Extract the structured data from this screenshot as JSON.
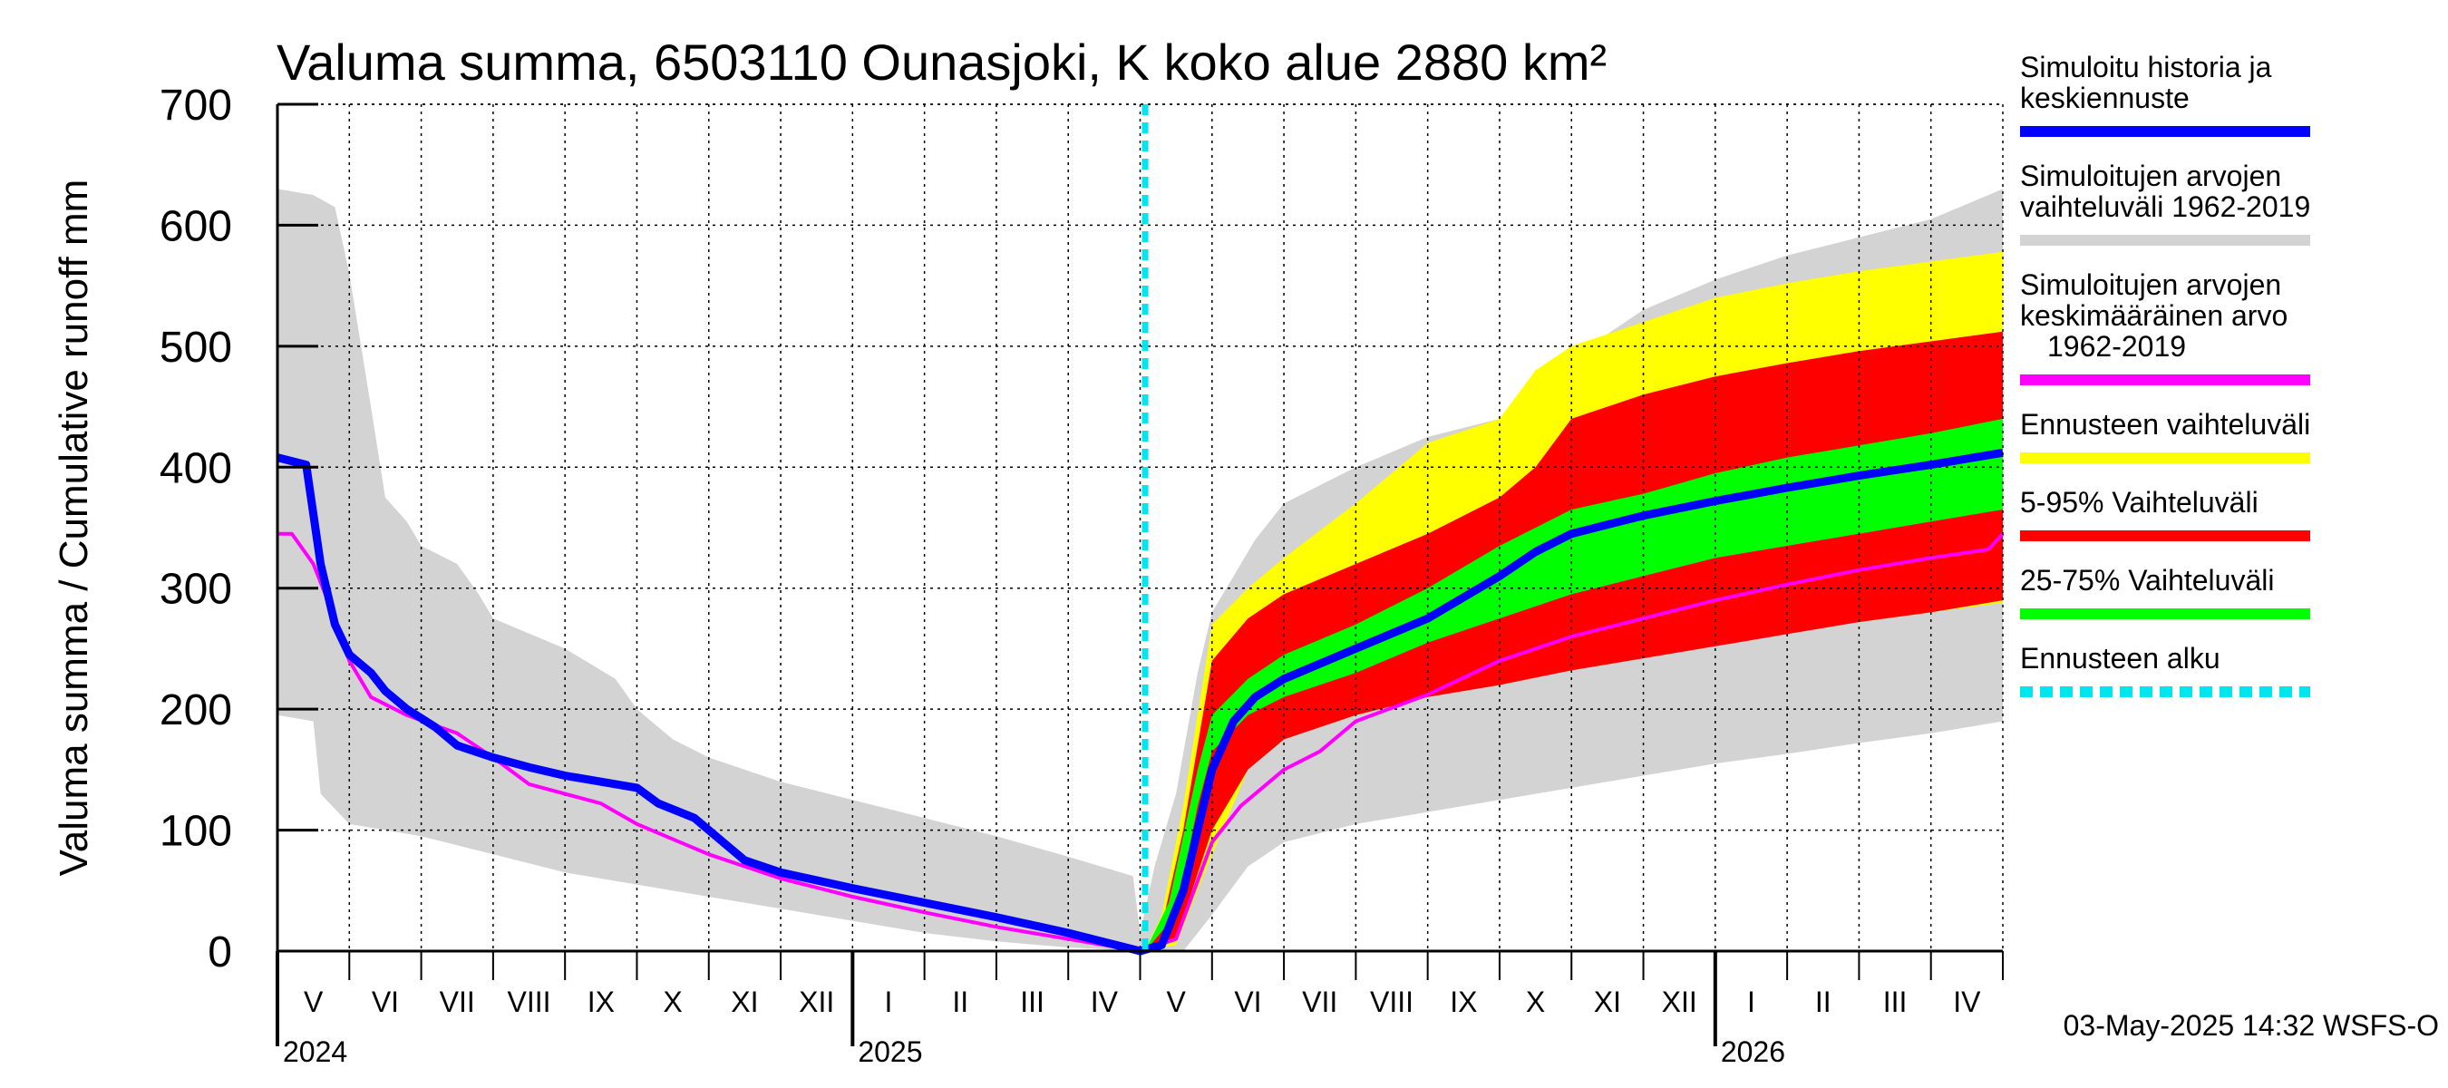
{
  "chart_data": {
    "type": "area",
    "title": "Valuma summa, 6503110 Ounasjoki, K koko alue 2880 km²",
    "ylabel": "Valuma summa / Cumulative runoff    mm",
    "ylim": [
      0,
      700
    ],
    "yticks": [
      "700",
      "600",
      "500",
      "400",
      "300",
      "200",
      "100",
      "0"
    ],
    "ytick_values": [
      700,
      600,
      500,
      400,
      300,
      200,
      100,
      0
    ],
    "x_unit": "months since 2024-05-01",
    "xlim": [
      0,
      24
    ],
    "forecast_start": 12.07,
    "month_labels": [
      "V",
      "VI",
      "VII",
      "VIII",
      "IX",
      "X",
      "XI",
      "XII",
      "I",
      "II",
      "III",
      "IV",
      "V",
      "VI",
      "VII",
      "VIII",
      "IX",
      "X",
      "XI",
      "XII",
      "I",
      "II",
      "III",
      "IV"
    ],
    "year_labels": [
      {
        "text": "2024",
        "x": 0
      },
      {
        "text": "2025",
        "x": 8
      },
      {
        "text": "2026",
        "x": 20
      }
    ],
    "series": [
      {
        "name": "Simuloitujen arvojen vaihteluväli 1962-2019",
        "role": "hist_range",
        "color": "#d3d3d3",
        "upper": [
          [
            0,
            630
          ],
          [
            0.5,
            625
          ],
          [
            0.8,
            615
          ],
          [
            1,
            560
          ],
          [
            1.3,
            450
          ],
          [
            1.5,
            375
          ],
          [
            1.8,
            355
          ],
          [
            2,
            335
          ],
          [
            2.5,
            320
          ],
          [
            2.8,
            295
          ],
          [
            3,
            275
          ],
          [
            4,
            250
          ],
          [
            4.7,
            225
          ],
          [
            5,
            200
          ],
          [
            5.5,
            175
          ],
          [
            6,
            160
          ],
          [
            7,
            140
          ],
          [
            8,
            125
          ],
          [
            9,
            110
          ],
          [
            10,
            95
          ],
          [
            11,
            78
          ],
          [
            11.9,
            62
          ],
          [
            12,
            15
          ],
          [
            12.2,
            70
          ],
          [
            12.5,
            130
          ],
          [
            12.8,
            230
          ],
          [
            13,
            280
          ],
          [
            13.3,
            310
          ],
          [
            13.6,
            340
          ],
          [
            14,
            370
          ],
          [
            15,
            400
          ],
          [
            16,
            425
          ],
          [
            17,
            440
          ],
          [
            17.5,
            460
          ],
          [
            18,
            480
          ],
          [
            18.5,
            510
          ],
          [
            19,
            530
          ],
          [
            20,
            555
          ],
          [
            21,
            575
          ],
          [
            22,
            590
          ],
          [
            23,
            605
          ],
          [
            24,
            630
          ]
        ],
        "lower": [
          [
            0,
            195
          ],
          [
            0.5,
            190
          ],
          [
            0.6,
            130
          ],
          [
            1,
            105
          ],
          [
            2,
            95
          ],
          [
            3,
            80
          ],
          [
            4,
            65
          ],
          [
            5,
            55
          ],
          [
            6,
            45
          ],
          [
            7,
            35
          ],
          [
            8,
            25
          ],
          [
            9,
            15
          ],
          [
            10,
            8
          ],
          [
            11,
            3
          ],
          [
            12,
            0
          ],
          [
            12.6,
            0
          ],
          [
            13,
            30
          ],
          [
            13.5,
            70
          ],
          [
            14,
            90
          ],
          [
            15,
            105
          ],
          [
            16,
            115
          ],
          [
            17,
            125
          ],
          [
            18,
            135
          ],
          [
            19,
            145
          ],
          [
            20,
            155
          ],
          [
            21,
            163
          ],
          [
            22,
            172
          ],
          [
            23,
            180
          ],
          [
            24,
            190
          ]
        ]
      },
      {
        "name": "Ennusteen vaihteluväli",
        "role": "forecast_range",
        "color": "#ffff00",
        "upper": [
          [
            12.07,
            0
          ],
          [
            12.3,
            30
          ],
          [
            12.6,
            120
          ],
          [
            13,
            270
          ],
          [
            13.5,
            300
          ],
          [
            14,
            325
          ],
          [
            15,
            370
          ],
          [
            16,
            420
          ],
          [
            17,
            440
          ],
          [
            17.5,
            480
          ],
          [
            18,
            500
          ],
          [
            19,
            520
          ],
          [
            20,
            540
          ],
          [
            21,
            552
          ],
          [
            22,
            562
          ],
          [
            23,
            570
          ],
          [
            24,
            578
          ]
        ],
        "lower": [
          [
            12.07,
            0
          ],
          [
            12.5,
            5
          ],
          [
            13,
            80
          ],
          [
            13.5,
            150
          ],
          [
            14,
            175
          ],
          [
            15,
            195
          ],
          [
            16,
            210
          ],
          [
            17,
            225
          ],
          [
            18,
            235
          ],
          [
            19,
            245
          ],
          [
            20,
            255
          ],
          [
            21,
            263
          ],
          [
            22,
            272
          ],
          [
            23,
            280
          ],
          [
            24,
            288
          ]
        ]
      },
      {
        "name": "5-95% Vaihteluväli",
        "role": "p5_95",
        "color": "#ff0000",
        "upper": [
          [
            12.07,
            0
          ],
          [
            12.3,
            20
          ],
          [
            12.6,
            100
          ],
          [
            13,
            240
          ],
          [
            13.5,
            275
          ],
          [
            14,
            295
          ],
          [
            15,
            320
          ],
          [
            16,
            345
          ],
          [
            17,
            375
          ],
          [
            17.5,
            400
          ],
          [
            18,
            440
          ],
          [
            19,
            460
          ],
          [
            20,
            475
          ],
          [
            21,
            486
          ],
          [
            22,
            496
          ],
          [
            23,
            504
          ],
          [
            24,
            512
          ]
        ],
        "lower": [
          [
            12.07,
            0
          ],
          [
            12.5,
            10
          ],
          [
            13,
            100
          ],
          [
            13.5,
            150
          ],
          [
            14,
            175
          ],
          [
            15,
            195
          ],
          [
            16,
            210
          ],
          [
            17,
            220
          ],
          [
            18,
            232
          ],
          [
            19,
            242
          ],
          [
            20,
            252
          ],
          [
            21,
            262
          ],
          [
            22,
            272
          ],
          [
            23,
            280
          ],
          [
            24,
            290
          ]
        ]
      },
      {
        "name": "25-75% Vaihteluväli",
        "role": "p25_75",
        "color": "#00ff00",
        "upper": [
          [
            12.07,
            0
          ],
          [
            12.4,
            40
          ],
          [
            12.8,
            150
          ],
          [
            13,
            195
          ],
          [
            13.5,
            225
          ],
          [
            14,
            245
          ],
          [
            15,
            270
          ],
          [
            16,
            300
          ],
          [
            17,
            335
          ],
          [
            18,
            365
          ],
          [
            19,
            378
          ],
          [
            20,
            395
          ],
          [
            21,
            408
          ],
          [
            22,
            418
          ],
          [
            23,
            428
          ],
          [
            24,
            440
          ]
        ],
        "lower": [
          [
            12.07,
            0
          ],
          [
            12.5,
            30
          ],
          [
            12.8,
            120
          ],
          [
            13,
            165
          ],
          [
            13.5,
            195
          ],
          [
            14,
            210
          ],
          [
            15,
            230
          ],
          [
            16,
            255
          ],
          [
            17,
            275
          ],
          [
            18,
            295
          ],
          [
            19,
            310
          ],
          [
            20,
            325
          ],
          [
            21,
            335
          ],
          [
            22,
            345
          ],
          [
            23,
            355
          ],
          [
            24,
            365
          ]
        ]
      },
      {
        "name": "Simuloitujen arvojen keskimääräinen arvo 1962-2019",
        "role": "hist_mean",
        "color": "#ff00ff",
        "points": [
          [
            0,
            345
          ],
          [
            0.2,
            345
          ],
          [
            0.5,
            320
          ],
          [
            0.7,
            290
          ],
          [
            1,
            240
          ],
          [
            1.3,
            210
          ],
          [
            1.8,
            195
          ],
          [
            2.5,
            180
          ],
          [
            3,
            160
          ],
          [
            3.5,
            138
          ],
          [
            4.5,
            122
          ],
          [
            5,
            105
          ],
          [
            6,
            80
          ],
          [
            7,
            60
          ],
          [
            8,
            45
          ],
          [
            9,
            32
          ],
          [
            10,
            20
          ],
          [
            11,
            10
          ],
          [
            12,
            0
          ],
          [
            12.5,
            10
          ],
          [
            13,
            90
          ],
          [
            13.4,
            120
          ],
          [
            14,
            150
          ],
          [
            14.5,
            165
          ],
          [
            15,
            190
          ],
          [
            16,
            212
          ],
          [
            17,
            240
          ],
          [
            18,
            260
          ],
          [
            19,
            275
          ],
          [
            20,
            290
          ],
          [
            21,
            303
          ],
          [
            22,
            315
          ],
          [
            23,
            325
          ],
          [
            23.8,
            332
          ],
          [
            24,
            345
          ]
        ]
      },
      {
        "name": "Simuloitu historia ja keskiennuste",
        "role": "sim_history",
        "color": "#0000ff",
        "points": [
          [
            0,
            408
          ],
          [
            0.4,
            402
          ],
          [
            0.6,
            320
          ],
          [
            0.8,
            270
          ],
          [
            1,
            245
          ],
          [
            1.3,
            230
          ],
          [
            1.5,
            215
          ],
          [
            1.8,
            200
          ],
          [
            2.2,
            185
          ],
          [
            2.5,
            170
          ],
          [
            3,
            160
          ],
          [
            3.5,
            152
          ],
          [
            4,
            145
          ],
          [
            4.5,
            140
          ],
          [
            5,
            135
          ],
          [
            5.3,
            122
          ],
          [
            5.8,
            110
          ],
          [
            6.2,
            90
          ],
          [
            6.5,
            75
          ],
          [
            7,
            65
          ],
          [
            8,
            52
          ],
          [
            9,
            40
          ],
          [
            10,
            28
          ],
          [
            11,
            15
          ],
          [
            12,
            0
          ],
          [
            12.3,
            5
          ],
          [
            12.6,
            50
          ],
          [
            13,
            150
          ],
          [
            13.3,
            190
          ],
          [
            13.6,
            210
          ],
          [
            14,
            225
          ],
          [
            15,
            250
          ],
          [
            16,
            275
          ],
          [
            17,
            310
          ],
          [
            17.5,
            330
          ],
          [
            18,
            345
          ],
          [
            19,
            360
          ],
          [
            20,
            372
          ],
          [
            21,
            383
          ],
          [
            22,
            393
          ],
          [
            23,
            402
          ],
          [
            24,
            412
          ]
        ]
      }
    ],
    "legend": [
      {
        "lines": [
          "Simuloitu historia ja",
          "keskiennuste"
        ],
        "color": "#0000ff",
        "dashed": false
      },
      {
        "lines": [
          "Simuloitujen arvojen",
          "vaihteluväli 1962-2019"
        ],
        "color": "#d3d3d3",
        "dashed": false
      },
      {
        "lines": [
          "Simuloitujen arvojen",
          "keskimääräinen arvo",
          "1962-2019"
        ],
        "color": "#ff00ff",
        "dashed": false
      },
      {
        "lines": [
          "Ennusteen vaihteluväli"
        ],
        "color": "#ffff00",
        "dashed": false
      },
      {
        "lines": [
          "5-95% Vaihteluväli"
        ],
        "color": "#ff0000",
        "dashed": false
      },
      {
        "lines": [
          "25-75% Vaihteluväli"
        ],
        "color": "#00ff00",
        "dashed": false
      },
      {
        "lines": [
          "Ennusteen alku"
        ],
        "color": "#00e5ee",
        "dashed": true
      }
    ],
    "forecast_line_color": "#00e5ee",
    "timestamp": "03-May-2025 14:32 WSFS-O"
  }
}
